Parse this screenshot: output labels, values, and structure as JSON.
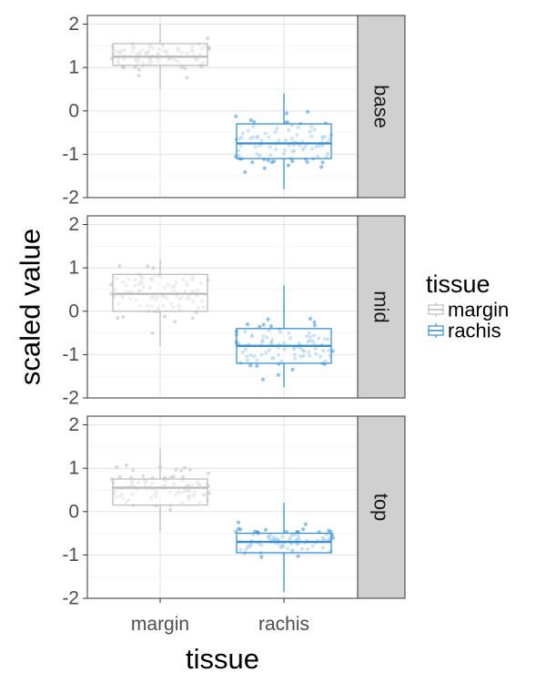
{
  "chart_data": {
    "type": "boxplot",
    "xlabel": "tissue",
    "ylabel": "scaled value",
    "categories": [
      "margin",
      "rachis"
    ],
    "ylim": [
      -2,
      2.2
    ],
    "yticks": [
      "-2",
      "-1",
      "0",
      "1",
      "2"
    ],
    "grid": true,
    "legend": {
      "title": "tissue",
      "position": "right",
      "entries": [
        {
          "label": "margin",
          "color": "#bdbdbd"
        },
        {
          "label": "rachis",
          "color": "#3a8fd4"
        }
      ]
    },
    "facets": [
      {
        "label": "base",
        "boxes": [
          {
            "category": "margin",
            "whisker_low": 0.5,
            "q1": 1.05,
            "median": 1.25,
            "q3": 1.55,
            "whisker_high": 2.0
          },
          {
            "category": "rachis",
            "whisker_low": -1.8,
            "q1": -1.1,
            "median": -0.75,
            "q3": -0.3,
            "whisker_high": 0.4
          }
        ]
      },
      {
        "label": "mid",
        "boxes": [
          {
            "category": "margin",
            "whisker_low": -0.8,
            "q1": 0.0,
            "median": 0.4,
            "q3": 0.85,
            "whisker_high": 1.2
          },
          {
            "category": "rachis",
            "whisker_low": -1.75,
            "q1": -1.2,
            "median": -0.8,
            "q3": -0.4,
            "whisker_high": 0.6
          }
        ]
      },
      {
        "label": "top",
        "boxes": [
          {
            "category": "margin",
            "whisker_low": -0.45,
            "q1": 0.15,
            "median": 0.55,
            "q3": 0.75,
            "whisker_high": 1.45
          },
          {
            "category": "rachis",
            "whisker_low": -1.85,
            "q1": -0.95,
            "median": -0.7,
            "q3": -0.5,
            "whisker_high": 0.2
          }
        ]
      }
    ]
  }
}
